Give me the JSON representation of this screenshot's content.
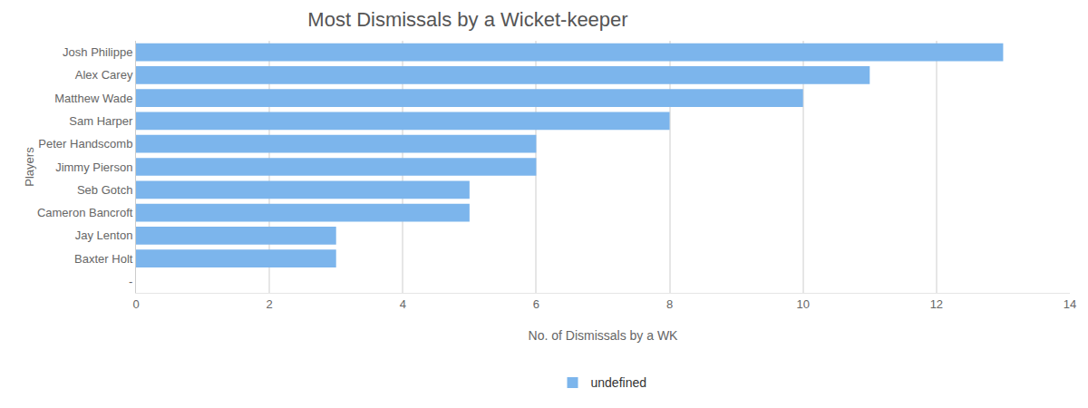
{
  "chart_data": {
    "type": "bar",
    "orientation": "horizontal",
    "title": "Most Dismissals by a Wicket-keeper",
    "x_label": "No. of Dismissals by a WK",
    "y_label": "Players",
    "categories": [
      "Josh Philippe",
      "Alex Carey",
      "Matthew Wade",
      "Sam Harper",
      "Peter Handscomb",
      "Jimmy Pierson",
      "Seb Gotch",
      "Cameron Bancroft",
      "Jay Lenton",
      "Baxter Holt",
      "-"
    ],
    "series": [
      {
        "name": "undefined",
        "color": "#7cb5ec",
        "values": [
          13,
          11,
          10,
          8,
          6,
          6,
          5,
          5,
          3,
          3,
          null
        ]
      }
    ],
    "xlim": [
      0,
      14
    ],
    "xticks": [
      0,
      2,
      4,
      6,
      8,
      10,
      12,
      14
    ],
    "grid": true,
    "legend": "bottom"
  }
}
